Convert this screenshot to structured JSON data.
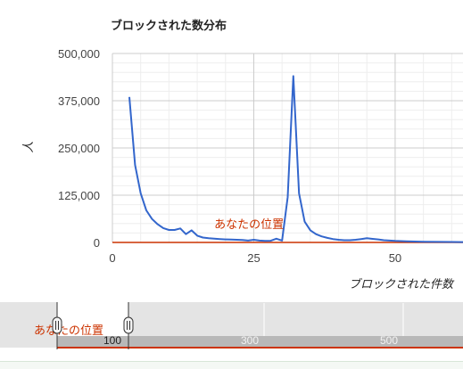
{
  "chart_data": {
    "type": "line",
    "title": "ブロックされた数分布",
    "xlabel": "ブロックされた件数",
    "ylabel": "人",
    "xlim": [
      0,
      62
    ],
    "ylim": [
      0,
      500000
    ],
    "x_ticks": [
      "0",
      "25",
      "50"
    ],
    "y_ticks": [
      "0",
      "125,000",
      "250,000",
      "375,000",
      "500,000"
    ],
    "grid": true,
    "line_color": "#3366cc",
    "baseline_color": "#cc3300",
    "marker": {
      "label": "あなたの位置",
      "color": "#cc3300",
      "x": 30
    },
    "series": [
      {
        "x": [
          3,
          4,
          5,
          6,
          7,
          8,
          9,
          10,
          11,
          12,
          13,
          14,
          15,
          16,
          17,
          18,
          19,
          20,
          21,
          22,
          23,
          24,
          25,
          26,
          27,
          28,
          29,
          30,
          31,
          32,
          33,
          34,
          35,
          36,
          37,
          38,
          39,
          40,
          41,
          42,
          43,
          44,
          45,
          46,
          47,
          48,
          49,
          50,
          52,
          55,
          58,
          62
        ],
        "values": [
          385000,
          205000,
          130000,
          85000,
          62000,
          48000,
          38000,
          33000,
          33000,
          37000,
          22000,
          32000,
          18000,
          13000,
          11000,
          10000,
          9000,
          8000,
          7500,
          7000,
          6500,
          5000,
          7000,
          5000,
          4000,
          4500,
          10000,
          5000,
          120000,
          440000,
          130000,
          55000,
          32000,
          22000,
          16000,
          12000,
          9000,
          7000,
          6000,
          6000,
          7000,
          9000,
          11000,
          9500,
          8000,
          6000,
          5000,
          4000,
          3000,
          2000,
          1500,
          1000
        ]
      }
    ],
    "navigator": {
      "ticks": [
        "100",
        "300",
        "500"
      ],
      "marker_label": "あなたの位置"
    }
  }
}
